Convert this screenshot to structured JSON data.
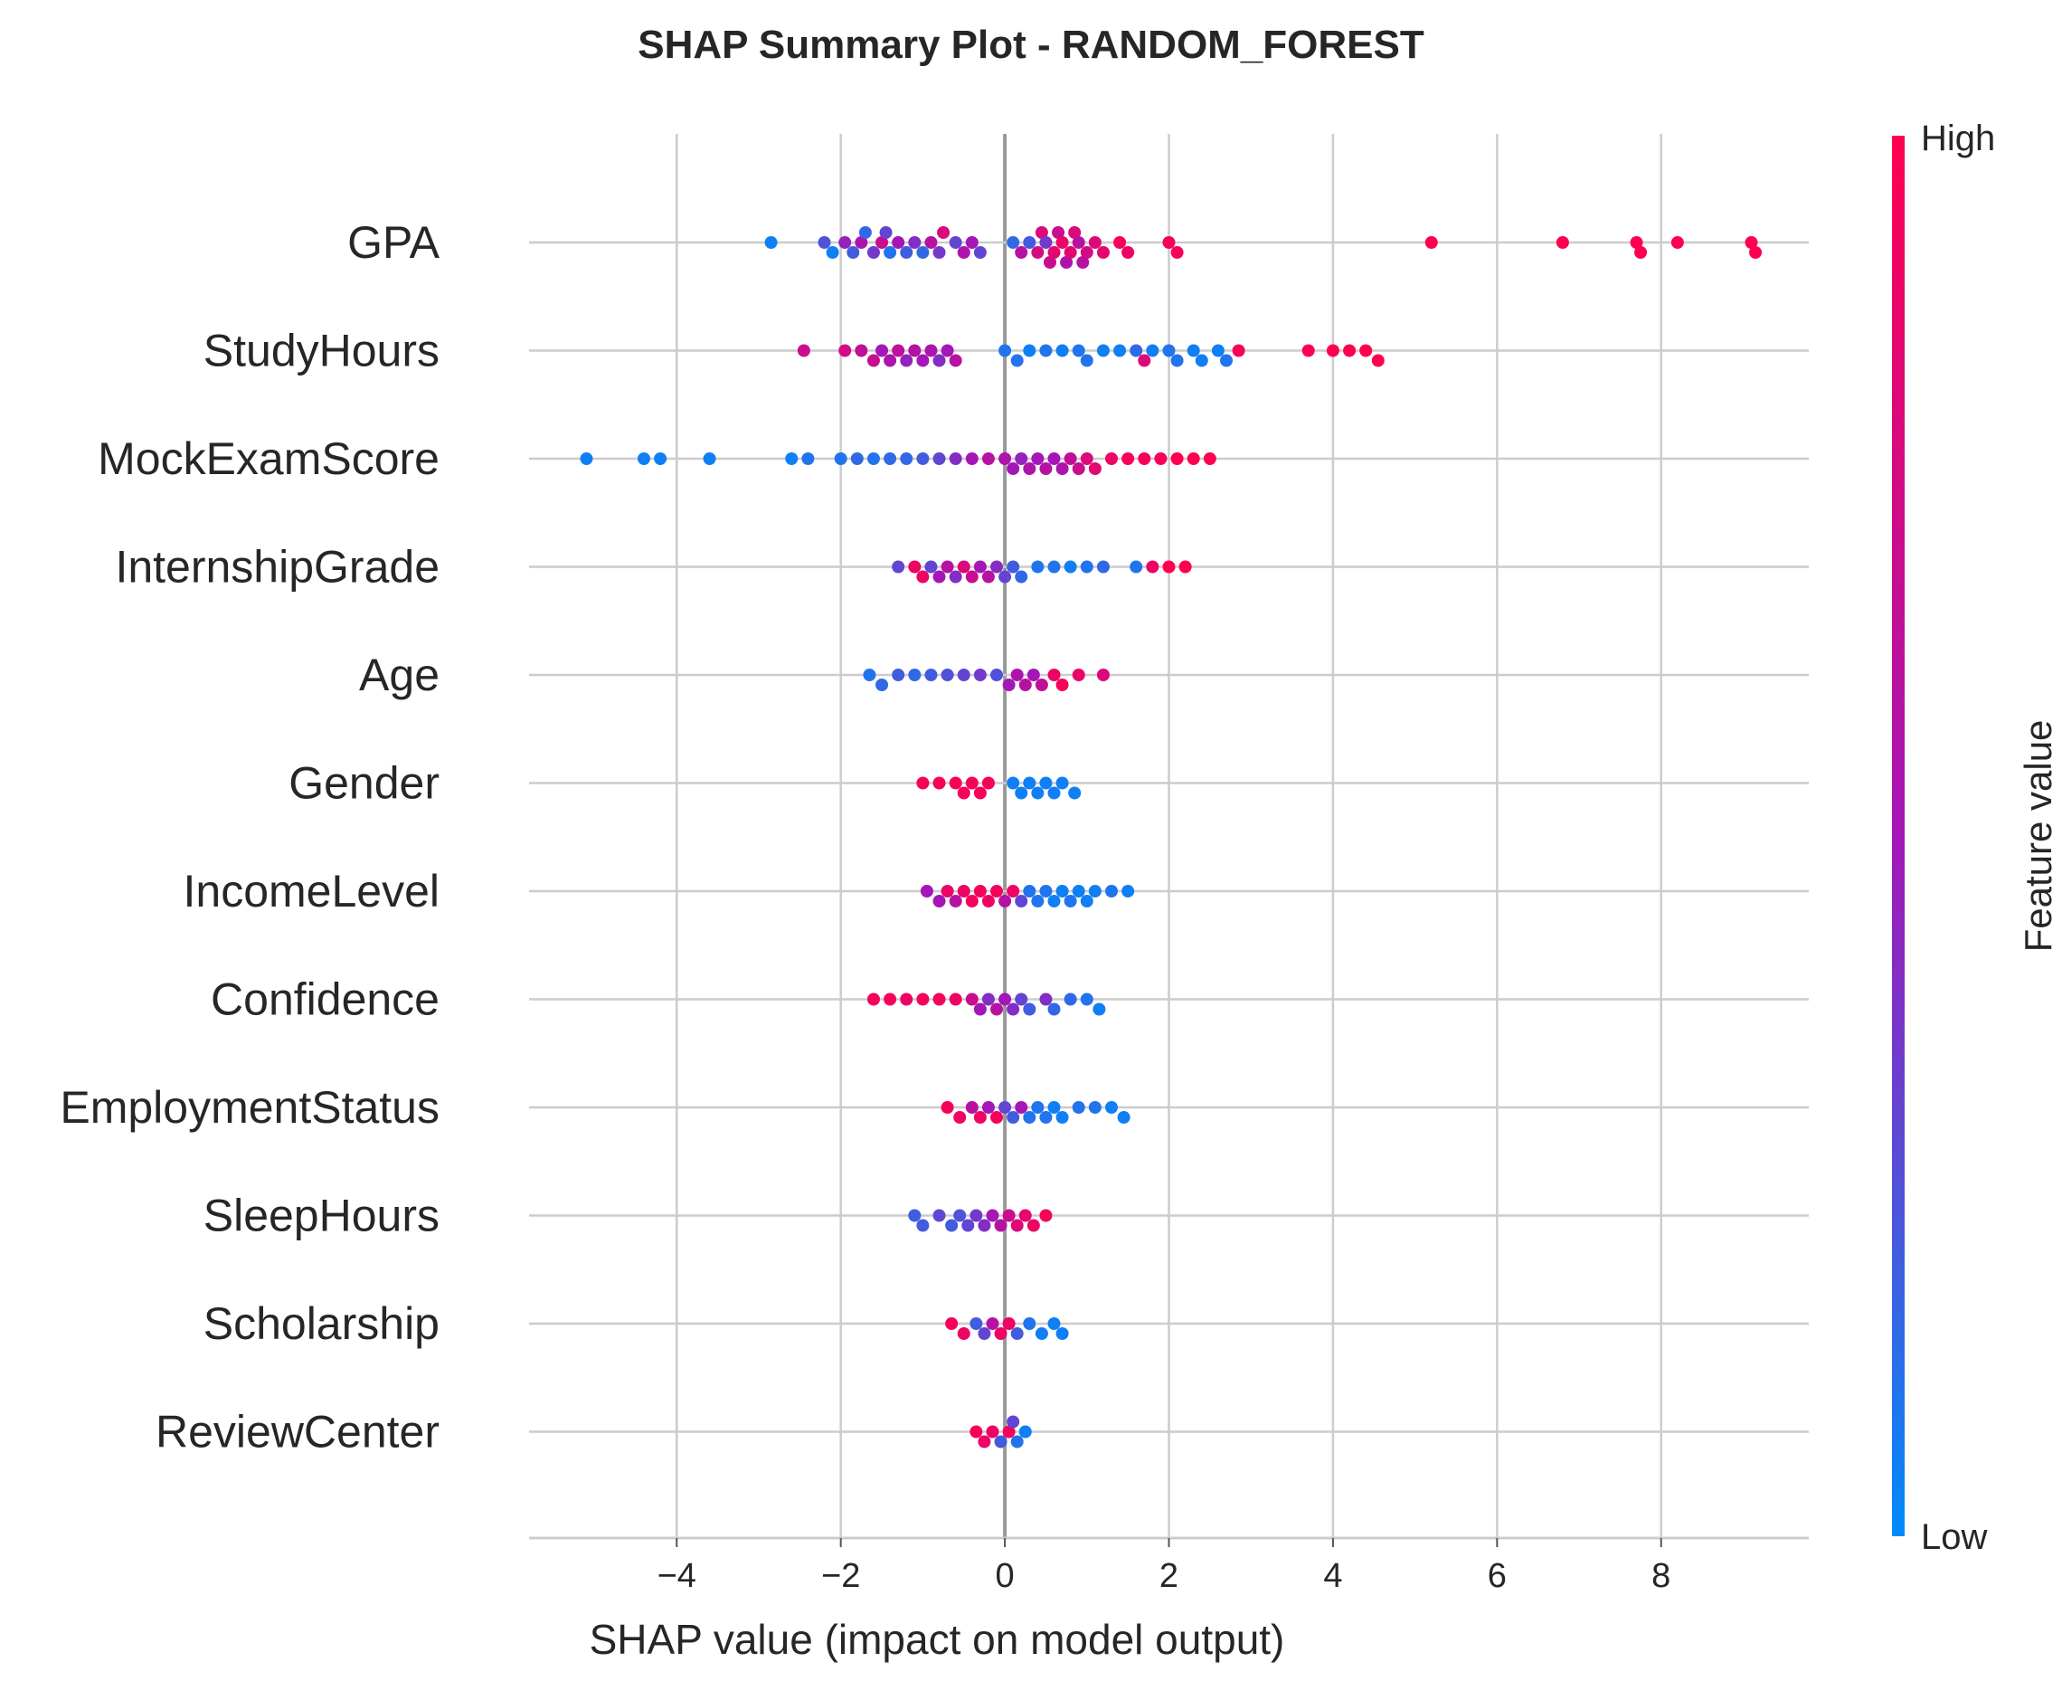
{
  "chart_data": {
    "type": "scatter",
    "title": "SHAP Summary Plot - RANDOM_FOREST",
    "xlabel": "SHAP value (impact on model output)",
    "xlim": [
      -5.8,
      9.8
    ],
    "xticks": [
      -4,
      -2,
      0,
      2,
      4,
      6,
      8
    ],
    "xtick_labels": [
      "−4",
      "−2",
      "0",
      "2",
      "4",
      "6",
      "8"
    ],
    "grid": true,
    "colorbar": {
      "title": "Feature value",
      "high_label": "High",
      "low_label": "Low",
      "low_color": "#008bfb",
      "mid_color": "#a416b6",
      "high_color": "#ff0051"
    },
    "features": [
      {
        "name": "GPA",
        "points": [
          [
            -2.85,
            0.05
          ],
          [
            -2.2,
            0.25
          ],
          [
            -2.1,
            0.05
          ],
          [
            -1.95,
            0.45
          ],
          [
            -1.85,
            0.2
          ],
          [
            -1.75,
            0.55
          ],
          [
            -1.7,
            0.15
          ],
          [
            -1.6,
            0.35
          ],
          [
            -1.5,
            0.7
          ],
          [
            -1.45,
            0.3
          ],
          [
            -1.4,
            0.1
          ],
          [
            -1.3,
            0.5
          ],
          [
            -1.2,
            0.2
          ],
          [
            -1.1,
            0.4
          ],
          [
            -1.0,
            0.15
          ],
          [
            -0.9,
            0.6
          ],
          [
            -0.8,
            0.35
          ],
          [
            -0.75,
            0.8
          ],
          [
            -0.6,
            0.3
          ],
          [
            -0.5,
            0.55
          ],
          [
            -0.4,
            0.5
          ],
          [
            -0.3,
            0.3
          ],
          [
            0.1,
            0.15
          ],
          [
            0.2,
            0.6
          ],
          [
            0.3,
            0.2
          ],
          [
            0.4,
            0.75
          ],
          [
            0.45,
            0.8
          ],
          [
            0.5,
            0.35
          ],
          [
            0.55,
            0.7
          ],
          [
            0.6,
            0.85
          ],
          [
            0.65,
            0.7
          ],
          [
            0.7,
            0.9
          ],
          [
            0.75,
            0.55
          ],
          [
            0.8,
            0.85
          ],
          [
            0.85,
            0.8
          ],
          [
            0.9,
            0.6
          ],
          [
            0.95,
            0.6
          ],
          [
            1.0,
            0.75
          ],
          [
            1.1,
            0.8
          ],
          [
            1.2,
            0.85
          ],
          [
            1.4,
            0.95
          ],
          [
            1.5,
            0.9
          ],
          [
            2.0,
            0.95
          ],
          [
            2.1,
            0.95
          ],
          [
            5.2,
            1.0
          ],
          [
            6.8,
            1.0
          ],
          [
            7.7,
            1.0
          ],
          [
            7.75,
            1.0
          ],
          [
            8.2,
            1.0
          ],
          [
            9.1,
            1.0
          ],
          [
            9.15,
            1.0
          ]
        ]
      },
      {
        "name": "StudyHours",
        "points": [
          [
            -2.45,
            0.7
          ],
          [
            -1.95,
            0.75
          ],
          [
            -1.75,
            0.65
          ],
          [
            -1.6,
            0.7
          ],
          [
            -1.5,
            0.5
          ],
          [
            -1.4,
            0.55
          ],
          [
            -1.3,
            0.65
          ],
          [
            -1.2,
            0.45
          ],
          [
            -1.1,
            0.6
          ],
          [
            -1.0,
            0.5
          ],
          [
            -0.9,
            0.55
          ],
          [
            -0.8,
            0.4
          ],
          [
            -0.7,
            0.5
          ],
          [
            -0.6,
            0.6
          ],
          [
            0.0,
            0.1
          ],
          [
            0.15,
            0.1
          ],
          [
            0.3,
            0.05
          ],
          [
            0.5,
            0.1
          ],
          [
            0.7,
            0.05
          ],
          [
            0.9,
            0.1
          ],
          [
            1.0,
            0.1
          ],
          [
            1.2,
            0.05
          ],
          [
            1.4,
            0.05
          ],
          [
            1.6,
            0.15
          ],
          [
            1.7,
            0.8
          ],
          [
            1.8,
            0.05
          ],
          [
            2.0,
            0.1
          ],
          [
            2.1,
            0.1
          ],
          [
            2.3,
            0.05
          ],
          [
            2.4,
            0.05
          ],
          [
            2.6,
            0.05
          ],
          [
            2.7,
            0.1
          ],
          [
            2.85,
            0.95
          ],
          [
            3.7,
            1.0
          ],
          [
            4.0,
            1.0
          ],
          [
            4.2,
            1.0
          ],
          [
            4.4,
            1.0
          ],
          [
            4.55,
            1.0
          ]
        ]
      },
      {
        "name": "MockExamScore",
        "points": [
          [
            -5.1,
            0.05
          ],
          [
            -4.4,
            0.05
          ],
          [
            -4.2,
            0.05
          ],
          [
            -3.6,
            0.05
          ],
          [
            -2.6,
            0.05
          ],
          [
            -2.4,
            0.1
          ],
          [
            -2.0,
            0.1
          ],
          [
            -1.8,
            0.15
          ],
          [
            -1.6,
            0.1
          ],
          [
            -1.4,
            0.15
          ],
          [
            -1.2,
            0.15
          ],
          [
            -1.0,
            0.2
          ],
          [
            -0.8,
            0.3
          ],
          [
            -0.6,
            0.4
          ],
          [
            -0.4,
            0.5
          ],
          [
            -0.2,
            0.6
          ],
          [
            0.0,
            0.55
          ],
          [
            0.1,
            0.5
          ],
          [
            0.2,
            0.45
          ],
          [
            0.3,
            0.55
          ],
          [
            0.4,
            0.5
          ],
          [
            0.5,
            0.6
          ],
          [
            0.6,
            0.5
          ],
          [
            0.7,
            0.55
          ],
          [
            0.8,
            0.65
          ],
          [
            0.9,
            0.7
          ],
          [
            1.0,
            0.8
          ],
          [
            1.1,
            0.85
          ],
          [
            1.3,
            0.9
          ],
          [
            1.5,
            0.95
          ],
          [
            1.7,
            0.95
          ],
          [
            1.9,
            0.95
          ],
          [
            2.1,
            1.0
          ],
          [
            2.3,
            1.0
          ],
          [
            2.5,
            1.0
          ]
        ]
      },
      {
        "name": "InternshipGrade",
        "points": [
          [
            -1.3,
            0.3
          ],
          [
            -1.1,
            0.9
          ],
          [
            -1.0,
            0.9
          ],
          [
            -0.9,
            0.3
          ],
          [
            -0.8,
            0.5
          ],
          [
            -0.7,
            0.6
          ],
          [
            -0.6,
            0.4
          ],
          [
            -0.5,
            0.8
          ],
          [
            -0.4,
            0.7
          ],
          [
            -0.3,
            0.5
          ],
          [
            -0.2,
            0.6
          ],
          [
            -0.1,
            0.4
          ],
          [
            0.0,
            0.3
          ],
          [
            0.1,
            0.2
          ],
          [
            0.2,
            0.15
          ],
          [
            0.4,
            0.1
          ],
          [
            0.6,
            0.1
          ],
          [
            0.8,
            0.05
          ],
          [
            1.0,
            0.1
          ],
          [
            1.2,
            0.15
          ],
          [
            1.6,
            0.1
          ],
          [
            1.8,
            0.9
          ],
          [
            2.0,
            1.0
          ],
          [
            2.2,
            1.0
          ]
        ]
      },
      {
        "name": "Age",
        "points": [
          [
            -1.65,
            0.1
          ],
          [
            -1.5,
            0.15
          ],
          [
            -1.3,
            0.2
          ],
          [
            -1.1,
            0.15
          ],
          [
            -0.9,
            0.2
          ],
          [
            -0.7,
            0.25
          ],
          [
            -0.5,
            0.3
          ],
          [
            -0.3,
            0.35
          ],
          [
            -0.1,
            0.25
          ],
          [
            0.05,
            0.5
          ],
          [
            0.15,
            0.55
          ],
          [
            0.25,
            0.6
          ],
          [
            0.35,
            0.5
          ],
          [
            0.45,
            0.65
          ],
          [
            0.6,
            0.9
          ],
          [
            0.7,
            0.95
          ],
          [
            0.9,
            0.9
          ],
          [
            1.2,
            0.8
          ]
        ]
      },
      {
        "name": "Gender",
        "points": [
          [
            -1.0,
            0.95
          ],
          [
            -0.8,
            0.95
          ],
          [
            -0.6,
            0.95
          ],
          [
            -0.5,
            0.95
          ],
          [
            -0.4,
            0.95
          ],
          [
            -0.3,
            0.95
          ],
          [
            -0.2,
            0.95
          ],
          [
            0.1,
            0.05
          ],
          [
            0.2,
            0.05
          ],
          [
            0.3,
            0.05
          ],
          [
            0.4,
            0.05
          ],
          [
            0.5,
            0.05
          ],
          [
            0.6,
            0.05
          ],
          [
            0.7,
            0.05
          ],
          [
            0.85,
            0.05
          ]
        ]
      },
      {
        "name": "IncomeLevel",
        "points": [
          [
            -0.95,
            0.5
          ],
          [
            -0.8,
            0.5
          ],
          [
            -0.7,
            0.9
          ],
          [
            -0.6,
            0.6
          ],
          [
            -0.5,
            0.9
          ],
          [
            -0.4,
            0.95
          ],
          [
            -0.3,
            0.95
          ],
          [
            -0.2,
            0.9
          ],
          [
            -0.1,
            0.95
          ],
          [
            0.0,
            0.6
          ],
          [
            0.1,
            0.9
          ],
          [
            0.2,
            0.3
          ],
          [
            0.3,
            0.1
          ],
          [
            0.4,
            0.1
          ],
          [
            0.5,
            0.1
          ],
          [
            0.6,
            0.05
          ],
          [
            0.7,
            0.05
          ],
          [
            0.8,
            0.1
          ],
          [
            0.9,
            0.05
          ],
          [
            1.0,
            0.05
          ],
          [
            1.1,
            0.05
          ],
          [
            1.3,
            0.1
          ],
          [
            1.5,
            0.05
          ]
        ]
      },
      {
        "name": "Confidence",
        "points": [
          [
            -1.6,
            0.95
          ],
          [
            -1.4,
            0.95
          ],
          [
            -1.2,
            0.9
          ],
          [
            -1.0,
            0.95
          ],
          [
            -0.8,
            0.95
          ],
          [
            -0.6,
            0.9
          ],
          [
            -0.4,
            0.7
          ],
          [
            -0.3,
            0.5
          ],
          [
            -0.2,
            0.4
          ],
          [
            -0.1,
            0.6
          ],
          [
            0.0,
            0.5
          ],
          [
            0.1,
            0.4
          ],
          [
            0.2,
            0.3
          ],
          [
            0.3,
            0.2
          ],
          [
            0.5,
            0.4
          ],
          [
            0.6,
            0.15
          ],
          [
            0.8,
            0.15
          ],
          [
            1.0,
            0.1
          ],
          [
            1.15,
            0.05
          ]
        ]
      },
      {
        "name": "EmploymentStatus",
        "points": [
          [
            -0.7,
            0.95
          ],
          [
            -0.55,
            0.9
          ],
          [
            -0.4,
            0.6
          ],
          [
            -0.3,
            0.9
          ],
          [
            -0.2,
            0.5
          ],
          [
            -0.1,
            0.95
          ],
          [
            0.0,
            0.3
          ],
          [
            0.1,
            0.2
          ],
          [
            0.2,
            0.5
          ],
          [
            0.3,
            0.1
          ],
          [
            0.4,
            0.1
          ],
          [
            0.5,
            0.1
          ],
          [
            0.6,
            0.05
          ],
          [
            0.7,
            0.05
          ],
          [
            0.9,
            0.1
          ],
          [
            1.1,
            0.1
          ],
          [
            1.3,
            0.05
          ],
          [
            1.45,
            0.05
          ]
        ]
      },
      {
        "name": "SleepHours",
        "points": [
          [
            -1.1,
            0.2
          ],
          [
            -1.0,
            0.2
          ],
          [
            -0.8,
            0.3
          ],
          [
            -0.65,
            0.2
          ],
          [
            -0.55,
            0.25
          ],
          [
            -0.45,
            0.3
          ],
          [
            -0.35,
            0.35
          ],
          [
            -0.25,
            0.4
          ],
          [
            -0.15,
            0.5
          ],
          [
            -0.05,
            0.6
          ],
          [
            0.05,
            0.7
          ],
          [
            0.15,
            0.8
          ],
          [
            0.25,
            0.85
          ],
          [
            0.35,
            0.9
          ],
          [
            0.5,
            0.95
          ]
        ]
      },
      {
        "name": "Scholarship",
        "points": [
          [
            -0.65,
            0.95
          ],
          [
            -0.5,
            0.9
          ],
          [
            -0.35,
            0.2
          ],
          [
            -0.25,
            0.3
          ],
          [
            -0.15,
            0.6
          ],
          [
            -0.05,
            0.9
          ],
          [
            0.05,
            0.9
          ],
          [
            0.15,
            0.2
          ],
          [
            0.3,
            0.1
          ],
          [
            0.45,
            0.05
          ],
          [
            0.6,
            0.05
          ],
          [
            0.7,
            0.05
          ]
        ]
      },
      {
        "name": "ReviewCenter",
        "points": [
          [
            -0.35,
            0.95
          ],
          [
            -0.25,
            0.9
          ],
          [
            -0.15,
            0.9
          ],
          [
            -0.05,
            0.2
          ],
          [
            0.05,
            0.95
          ],
          [
            0.1,
            0.3
          ],
          [
            0.15,
            0.1
          ],
          [
            0.25,
            0.05
          ]
        ]
      }
    ]
  }
}
